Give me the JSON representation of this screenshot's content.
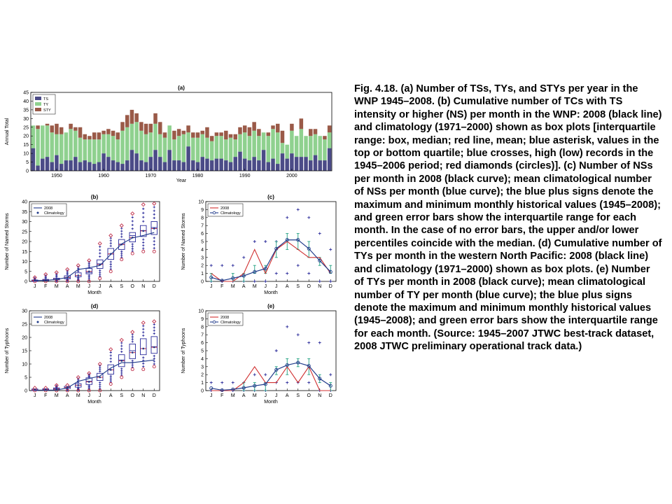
{
  "caption": "Fig. 4.18. (a) Number of TSs, TYs, and STYs per year in the WNP 1945–2008. (b) Cumulative number of TCs with TS intensity or higher (NS) per month in the WNP: 2008 (black line) and climatology (1971–2000) shown as box plots [interquartile range: box, median; red line, mean; blue asterisk, values in the top or bottom quartile; blue crosses, high (low) records in the 1945–2006 period; red diamonds (circles)]. (c) Number of NSs per month in 2008 (black curve); mean climatological number of NSs per month (blue curve); the blue plus signs denote the maximum and minimum monthly historical values (1945–2008); and green error bars show the interquartile range for each month. In the case of no error bars, the upper and/or lower percentiles coincide with the median. (d) Cumulative number of TYs per month in the western North Pacific: 2008 (black line) and climatology (1971–2000) shown as box plots. (e) Number of TYs per month in 2008 (black curve); mean climatological number of TY per month (blue curve); the blue plus signs denote the maximum and minimum monthly historical values (1945–2008); and green error bars show the interquartile range for each month. (Source: 1945–2007 JTWC best-track dataset, 2008 JTWC preliminary operational track data.)",
  "colors": {
    "ts": "#4b4b87",
    "ty": "#8fd18f",
    "sty": "#9a5a48",
    "box": "#2a2a9a",
    "mean": "#c0304a",
    "err": "#20a080",
    "line2008": "#d03030",
    "clim": "#1f3a8a",
    "plus": "#2a2a9a"
  },
  "chart_data": [
    {
      "id": "a",
      "type": "bar",
      "stacked": true,
      "panel_label": "(a)",
      "xlabel": "Year",
      "ylabel": "Annual Total",
      "ylim": [
        0,
        45
      ],
      "yticks": [
        0,
        5,
        10,
        15,
        20,
        25,
        30,
        35,
        40,
        45
      ],
      "xticks": [
        1950,
        1960,
        1970,
        1980,
        1990,
        2000
      ],
      "xlim": [
        1944.5,
        2008.5
      ],
      "legend": [
        "TS",
        "TY",
        "STY"
      ],
      "legend_position": "top-left",
      "x": [
        1945,
        1946,
        1947,
        1948,
        1949,
        1950,
        1951,
        1952,
        1953,
        1954,
        1955,
        1956,
        1957,
        1958,
        1959,
        1960,
        1961,
        1962,
        1963,
        1964,
        1965,
        1966,
        1967,
        1968,
        1969,
        1970,
        1971,
        1972,
        1973,
        1974,
        1975,
        1976,
        1977,
        1978,
        1979,
        1980,
        1981,
        1982,
        1983,
        1984,
        1985,
        1986,
        1987,
        1988,
        1989,
        1990,
        1991,
        1992,
        1993,
        1994,
        1995,
        1996,
        1997,
        1998,
        1999,
        2000,
        2001,
        2002,
        2003,
        2004,
        2005,
        2006,
        2007,
        2008
      ],
      "series": [
        {
          "name": "TS",
          "values": [
            13,
            3,
            7,
            8,
            5,
            9,
            4,
            6,
            6,
            8,
            5,
            6,
            5,
            4,
            5,
            10,
            8,
            6,
            5,
            4,
            6,
            12,
            10,
            6,
            5,
            8,
            12,
            8,
            5,
            12,
            6,
            6,
            5,
            14,
            6,
            5,
            8,
            7,
            6,
            7,
            7,
            6,
            5,
            8,
            11,
            7,
            6,
            8,
            6,
            12,
            5,
            7,
            4,
            10,
            7,
            10,
            8,
            8,
            8,
            6,
            9,
            6,
            6,
            13
          ]
        },
        {
          "name": "TY",
          "values": [
            13,
            21,
            19,
            18,
            17,
            12,
            17,
            16,
            18,
            15,
            14,
            12,
            13,
            14,
            13,
            11,
            13,
            14,
            13,
            19,
            19,
            15,
            18,
            17,
            16,
            14,
            15,
            13,
            14,
            14,
            12,
            14,
            16,
            8,
            13,
            14,
            13,
            12,
            11,
            13,
            13,
            12,
            14,
            10,
            10,
            15,
            14,
            15,
            14,
            10,
            15,
            17,
            18,
            6,
            8,
            13,
            12,
            16,
            12,
            14,
            12,
            14,
            12,
            9
          ]
        },
        {
          "name": "STY",
          "values": [
            0,
            2,
            0,
            1,
            4,
            6,
            4,
            0,
            3,
            2,
            6,
            3,
            2,
            4,
            4,
            2,
            3,
            3,
            4,
            5,
            7,
            8,
            5,
            5,
            6,
            5,
            6,
            7,
            3,
            0,
            5,
            4,
            2,
            4,
            3,
            3,
            2,
            6,
            3,
            2,
            2,
            5,
            2,
            3,
            4,
            4,
            5,
            5,
            4,
            0,
            2,
            2,
            5,
            7,
            0,
            4,
            0,
            6,
            0,
            4,
            3,
            0,
            2,
            4
          ]
        }
      ]
    },
    {
      "id": "b",
      "type": "box",
      "panel_label": "(b)",
      "xlabel": "Month",
      "ylabel": "Number of Named Storms",
      "ylim": [
        0,
        40
      ],
      "yticks": [
        0,
        5,
        10,
        15,
        20,
        25,
        30,
        35,
        40
      ],
      "categories": [
        "J",
        "F",
        "M",
        "A",
        "M",
        "J",
        "J",
        "A",
        "S",
        "O",
        "N",
        "D"
      ],
      "legend": [
        "2008",
        "Climatology"
      ],
      "legend_position": "top-left",
      "box_q1": [
        0,
        0.3,
        0.8,
        1.3,
        2.3,
        3.8,
        6.5,
        11,
        16,
        19.8,
        22.5,
        23.5
      ],
      "box_median": [
        0.3,
        0.7,
        1,
        1.8,
        3,
        4.5,
        8.8,
        13.7,
        18.7,
        23,
        25.5,
        27
      ],
      "box_q3": [
        0.7,
        1,
        1.6,
        2.8,
        4.3,
        6.5,
        10.8,
        16.5,
        21,
        24.5,
        28,
        30
      ],
      "mean": [
        0.5,
        0.7,
        1.1,
        2,
        3,
        5,
        8.5,
        13.8,
        18.5,
        22,
        25.3,
        26.5
      ],
      "line_2008": [
        0.5,
        0.5,
        1,
        2,
        6,
        6.8,
        8,
        13.5,
        18.8,
        21.8,
        23,
        24.5
      ],
      "record_high": [
        2,
        3.5,
        4.5,
        6,
        8,
        10.5,
        19,
        23,
        28,
        34,
        38.5,
        39
      ],
      "record_low": [
        0,
        0,
        0,
        0,
        0,
        0,
        1.5,
        5,
        11,
        14,
        15,
        15
      ]
    },
    {
      "id": "c",
      "type": "line",
      "panel_label": "(c)",
      "xlabel": "Month",
      "ylabel": "Number of Named Storms",
      "ylim": [
        0,
        10
      ],
      "yticks": [
        0,
        1,
        2,
        3,
        4,
        5,
        6,
        7,
        8,
        9,
        10
      ],
      "categories": [
        "J",
        "F",
        "M",
        "A",
        "M",
        "J",
        "J",
        "A",
        "S",
        "O",
        "N",
        "D"
      ],
      "legend": [
        "2008",
        "Climatology"
      ],
      "legend_position": "top-left",
      "series": [
        {
          "name": "2008",
          "values": [
            1,
            0,
            0,
            1,
            4,
            1,
            4,
            5,
            4,
            3,
            3,
            1
          ]
        },
        {
          "name": "Climatology",
          "values": [
            0.5,
            0.1,
            0.4,
            0.7,
            1.2,
            1.6,
            4.1,
            5.2,
            5.2,
            4.1,
            2.6,
            1.2
          ]
        }
      ],
      "iqr_low": [
        0,
        0,
        0,
        0,
        1,
        1,
        3,
        4,
        4,
        3,
        2,
        1
      ],
      "iqr_high": [
        1,
        0,
        1,
        1,
        2,
        2,
        5,
        6,
        6,
        5,
        3,
        2
      ],
      "max": [
        2,
        2,
        2,
        3,
        5,
        5,
        5,
        8,
        9,
        8,
        6,
        4
      ],
      "min": [
        0,
        0,
        0,
        0,
        0,
        0,
        1,
        1,
        2,
        1,
        0,
        0
      ]
    },
    {
      "id": "d",
      "type": "box",
      "panel_label": "(d)",
      "xlabel": "Month",
      "ylabel": "Number of Typhoons",
      "ylim": [
        0,
        30
      ],
      "yticks": [
        0,
        5,
        10,
        15,
        20,
        25,
        30
      ],
      "categories": [
        "J",
        "F",
        "M",
        "A",
        "M",
        "J",
        "J",
        "A",
        "S",
        "O",
        "N",
        "D"
      ],
      "legend": [
        "2008",
        "Climatology"
      ],
      "legend_position": "top-left",
      "box_q1": [
        0,
        0.1,
        0.3,
        0.8,
        1.3,
        2.3,
        3.8,
        6.2,
        9,
        12,
        13.5,
        14
      ],
      "box_median": [
        0.3,
        0.4,
        0.7,
        1.2,
        2,
        3.5,
        5,
        7.8,
        11.5,
        15,
        15.8,
        16.5
      ],
      "box_q3": [
        0.6,
        0.7,
        1,
        1.6,
        2.6,
        4.8,
        6.5,
        9.7,
        13.5,
        17.5,
        19.5,
        20.3
      ],
      "mean": [
        0.3,
        0.4,
        0.6,
        1.2,
        2,
        3.3,
        5,
        7.8,
        11.2,
        14.3,
        15.8,
        16.3
      ],
      "line_2008": [
        0.2,
        0.2,
        0.2,
        1,
        3.5,
        4.5,
        5.5,
        8.5,
        10.5,
        10.5,
        11,
        11.5
      ],
      "record_high": [
        1,
        1,
        2,
        2,
        5,
        6.5,
        10,
        15.5,
        19,
        22,
        25.5,
        26
      ],
      "record_low": [
        0,
        0,
        0,
        0,
        0,
        0,
        0,
        2.5,
        5,
        8,
        8,
        9
      ]
    },
    {
      "id": "e",
      "type": "line",
      "panel_label": "(e)",
      "xlabel": "Month",
      "ylabel": "Number of Typhoons",
      "ylim": [
        0,
        10
      ],
      "yticks": [
        0,
        1,
        2,
        3,
        4,
        5,
        6,
        7,
        8,
        9,
        10
      ],
      "categories": [
        "J",
        "F",
        "M",
        "A",
        "M",
        "J",
        "J",
        "A",
        "S",
        "O",
        "N",
        "D"
      ],
      "legend": [
        "2008",
        "Climatology"
      ],
      "legend_position": "top-left",
      "series": [
        {
          "name": "2008",
          "values": [
            0,
            0,
            0,
            1,
            3,
            1,
            1,
            3,
            1,
            3,
            0,
            0
          ]
        },
        {
          "name": "Climatology",
          "values": [
            0.3,
            0.05,
            0.15,
            0.35,
            0.6,
            0.8,
            2.6,
            3.2,
            3.5,
            3.1,
            1.5,
            0.6
          ]
        }
      ],
      "iqr_low": [
        0,
        0,
        0,
        0,
        0,
        0,
        2,
        2,
        3,
        2,
        1,
        0
      ],
      "iqr_high": [
        0,
        0,
        0,
        1,
        1,
        1,
        3,
        4,
        4,
        4,
        2,
        1
      ],
      "max": [
        1,
        1,
        1,
        1,
        2,
        2,
        5,
        8,
        7,
        6,
        6,
        2
      ],
      "min": [
        0,
        0,
        0,
        0,
        0,
        0,
        1,
        1,
        1,
        1,
        0,
        0
      ]
    }
  ]
}
